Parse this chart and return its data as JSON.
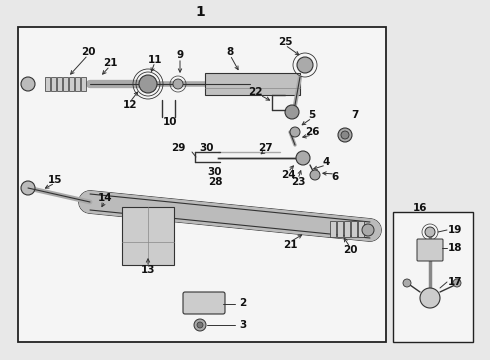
{
  "bg_color": "#e8e8e8",
  "diagram_bg": "#f5f5f5",
  "border_color": "#222222",
  "text_color": "#111111",
  "line_color": "#333333",
  "part_color": "#666666",
  "shaft_color": "#555555",
  "title": "1",
  "inset_label": "16",
  "fs_label": 7.5,
  "fs_title": 9
}
